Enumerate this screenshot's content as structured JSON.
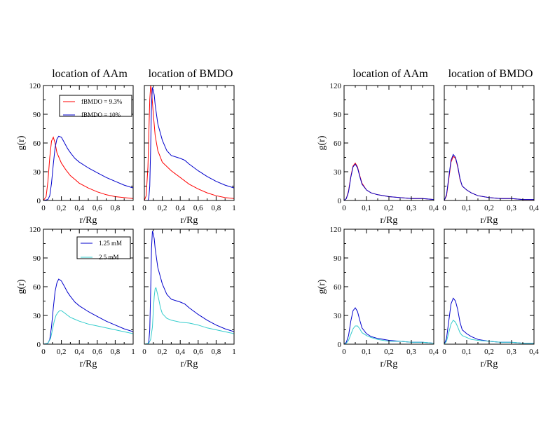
{
  "colors": {
    "red": "#ff0000",
    "blue": "#0000cc",
    "cyan": "#33cccc",
    "axes": "#000000"
  },
  "legends": {
    "fbmdo": {
      "entries": [
        {
          "label": "fBMDO = 9.3%",
          "color": "#ff0000"
        },
        {
          "label": "fBMDO = 10%",
          "color": "#0000cc"
        }
      ]
    },
    "conc": {
      "entries": [
        {
          "label": "1.25 mM",
          "color": "#0000cc"
        },
        {
          "label": "2.5 mM",
          "color": "#33cccc"
        }
      ]
    }
  },
  "chart_data": [
    {
      "type": "line",
      "title": "location of AAm",
      "xlabel": "r/Rg",
      "ylabel": "g(r)",
      "xlim": [
        0,
        1
      ],
      "ylim": [
        0,
        120
      ],
      "xticks": [
        "0",
        "0,2",
        "0,4",
        "0,6",
        "0,8",
        "1"
      ],
      "yticks": [
        "0",
        "30",
        "60",
        "90",
        "120"
      ],
      "legend": "fbmdo",
      "series": [
        {
          "name": "fBMDO = 9.3%",
          "color": "#ff0000",
          "x": [
            0,
            0.03,
            0.05,
            0.07,
            0.09,
            0.11,
            0.13,
            0.15,
            0.2,
            0.25,
            0.3,
            0.35,
            0.4,
            0.5,
            0.6,
            0.7,
            0.8,
            0.9,
            1.0
          ],
          "y": [
            0,
            4,
            20,
            45,
            62,
            66,
            60,
            50,
            39,
            32,
            26,
            22,
            18,
            13,
            9,
            6,
            4,
            3,
            2
          ]
        },
        {
          "name": "fBMDO = 10%",
          "color": "#0000cc",
          "x": [
            0,
            0.05,
            0.07,
            0.09,
            0.11,
            0.13,
            0.15,
            0.17,
            0.2,
            0.23,
            0.27,
            0.3,
            0.35,
            0.4,
            0.5,
            0.6,
            0.7,
            0.8,
            0.9,
            1.0
          ],
          "y": [
            0,
            1,
            5,
            18,
            38,
            55,
            64,
            67,
            66,
            61,
            54,
            50,
            44,
            40,
            34,
            29,
            24,
            20,
            16,
            13
          ]
        }
      ]
    },
    {
      "type": "line",
      "title": "location of BMDO",
      "xlabel": "r/Rg",
      "ylabel": "",
      "xlim": [
        0,
        1
      ],
      "ylim": [
        0,
        120
      ],
      "xticks": [
        "0",
        "0,2",
        "0,4",
        "0,6",
        "0,8",
        "1"
      ],
      "yticks": [],
      "series": [
        {
          "color": "#ff0000",
          "x": [
            0,
            0.02,
            0.04,
            0.05,
            0.06,
            0.07,
            0.08,
            0.1,
            0.12,
            0.15,
            0.2,
            0.3,
            0.4,
            0.5,
            0.6,
            0.7,
            0.8,
            0.9,
            1.0
          ],
          "y": [
            0,
            5,
            35,
            70,
            105,
            120,
            115,
            90,
            68,
            52,
            40,
            31,
            24,
            17,
            12,
            8,
            5,
            3,
            2
          ]
        },
        {
          "color": "#0000cc",
          "x": [
            0,
            0.04,
            0.05,
            0.06,
            0.07,
            0.08,
            0.09,
            0.1,
            0.11,
            0.12,
            0.15,
            0.2,
            0.25,
            0.3,
            0.4,
            0.45,
            0.5,
            0.6,
            0.7,
            0.8,
            0.9,
            1.0
          ],
          "y": [
            0,
            0,
            3,
            15,
            55,
            100,
            118,
            115,
            110,
            100,
            80,
            63,
            52,
            47,
            44,
            42,
            38,
            31,
            25,
            20,
            16,
            13
          ]
        }
      ]
    },
    {
      "type": "line",
      "title": "location of AAm",
      "xlabel": "r/Rg",
      "ylabel": "g(r)",
      "xlim": [
        0,
        0.4
      ],
      "ylim": [
        0,
        120
      ],
      "xticks": [
        "0",
        "0,1",
        "0,2",
        "0,3",
        "0,4"
      ],
      "yticks": [
        "0",
        "30",
        "60",
        "90",
        "120"
      ],
      "series": [
        {
          "color": "#ff0000",
          "x": [
            0,
            0.01,
            0.02,
            0.03,
            0.04,
            0.05,
            0.06,
            0.07,
            0.08,
            0.1,
            0.12,
            0.15,
            0.2,
            0.25,
            0.3,
            0.35,
            0.4
          ],
          "y": [
            0,
            2,
            10,
            25,
            36,
            39,
            35,
            26,
            18,
            11,
            8,
            6,
            4,
            3,
            2,
            2,
            1
          ]
        },
        {
          "color": "#0000cc",
          "x": [
            0,
            0.01,
            0.02,
            0.03,
            0.04,
            0.05,
            0.06,
            0.07,
            0.08,
            0.1,
            0.12,
            0.15,
            0.2,
            0.25,
            0.3,
            0.35,
            0.4
          ],
          "y": [
            0,
            2,
            9,
            24,
            35,
            38,
            34,
            25,
            17,
            11,
            8,
            6,
            4,
            3,
            2,
            2,
            1
          ]
        }
      ]
    },
    {
      "type": "line",
      "title": "location of BMDO",
      "xlabel": "r/Rg",
      "ylabel": "",
      "xlim": [
        0,
        0.4
      ],
      "ylim": [
        0,
        120
      ],
      "xticks": [
        "0",
        "0,1",
        "0,2",
        "0,3",
        "0,4"
      ],
      "yticks": [],
      "series": [
        {
          "color": "#ff0000",
          "x": [
            0,
            0.01,
            0.02,
            0.03,
            0.04,
            0.05,
            0.06,
            0.07,
            0.08,
            0.1,
            0.12,
            0.15,
            0.2,
            0.25,
            0.3,
            0.35,
            0.4
          ],
          "y": [
            0,
            5,
            22,
            40,
            46,
            44,
            35,
            22,
            15,
            11,
            8,
            5,
            3,
            2,
            2,
            1,
            1
          ]
        },
        {
          "color": "#0000cc",
          "x": [
            0,
            0.01,
            0.02,
            0.03,
            0.04,
            0.05,
            0.06,
            0.07,
            0.08,
            0.1,
            0.12,
            0.15,
            0.2,
            0.25,
            0.3,
            0.35,
            0.4
          ],
          "y": [
            0,
            6,
            24,
            42,
            48,
            45,
            36,
            23,
            15,
            11,
            8,
            5,
            3,
            2,
            2,
            1,
            1
          ]
        }
      ]
    },
    {
      "type": "line",
      "title": "",
      "xlabel": "r/Rg",
      "ylabel": "g(r)",
      "xlim": [
        0,
        1
      ],
      "ylim": [
        0,
        120
      ],
      "xticks": [
        "0",
        "0,2",
        "0,4",
        "0,6",
        "0,8",
        "1"
      ],
      "yticks": [
        "0",
        "30",
        "60",
        "90",
        "120"
      ],
      "legend": "conc",
      "series": [
        {
          "name": "1.25 mM",
          "color": "#0000cc",
          "x": [
            0,
            0.05,
            0.07,
            0.09,
            0.11,
            0.13,
            0.15,
            0.17,
            0.2,
            0.23,
            0.27,
            0.3,
            0.35,
            0.4,
            0.5,
            0.6,
            0.7,
            0.8,
            0.9,
            1.0
          ],
          "y": [
            0,
            1,
            5,
            18,
            38,
            55,
            64,
            68,
            66,
            61,
            54,
            50,
            44,
            40,
            34,
            29,
            24,
            20,
            16,
            13
          ]
        },
        {
          "name": "2.5 mM",
          "color": "#33cccc",
          "x": [
            0,
            0.05,
            0.08,
            0.1,
            0.12,
            0.14,
            0.16,
            0.18,
            0.2,
            0.23,
            0.27,
            0.3,
            0.35,
            0.4,
            0.5,
            0.6,
            0.7,
            0.8,
            0.9,
            1.0
          ],
          "y": [
            0,
            1,
            6,
            15,
            24,
            30,
            33,
            35,
            35,
            33,
            30,
            28,
            26,
            24,
            21,
            19,
            17,
            15,
            13,
            11
          ]
        }
      ]
    },
    {
      "type": "line",
      "title": "",
      "xlabel": "r/Rg",
      "ylabel": "",
      "xlim": [
        0,
        1
      ],
      "ylim": [
        0,
        120
      ],
      "xticks": [
        "0",
        "0,2",
        "0,4",
        "0,6",
        "0,8",
        "1"
      ],
      "yticks": [],
      "series": [
        {
          "color": "#0000cc",
          "x": [
            0,
            0.04,
            0.05,
            0.06,
            0.07,
            0.08,
            0.09,
            0.1,
            0.11,
            0.12,
            0.15,
            0.2,
            0.25,
            0.3,
            0.4,
            0.45,
            0.5,
            0.6,
            0.7,
            0.8,
            0.9,
            1.0
          ],
          "y": [
            0,
            0,
            3,
            15,
            55,
            100,
            118,
            115,
            110,
            100,
            80,
            63,
            52,
            47,
            44,
            42,
            38,
            31,
            25,
            20,
            16,
            13
          ]
        },
        {
          "color": "#33cccc",
          "x": [
            0,
            0.05,
            0.07,
            0.09,
            0.1,
            0.11,
            0.12,
            0.13,
            0.14,
            0.16,
            0.18,
            0.2,
            0.25,
            0.3,
            0.4,
            0.5,
            0.6,
            0.7,
            0.8,
            0.9,
            1.0
          ],
          "y": [
            0,
            1,
            5,
            18,
            35,
            50,
            58,
            59,
            55,
            47,
            38,
            32,
            27,
            25,
            23,
            22,
            20,
            17,
            15,
            13,
            11
          ]
        }
      ]
    },
    {
      "type": "line",
      "title": "",
      "xlabel": "r/Rg",
      "ylabel": "g(r)",
      "xlim": [
        0,
        0.4
      ],
      "ylim": [
        0,
        120
      ],
      "xticks": [
        "0",
        "0,1",
        "0,2",
        "0,3",
        "0,4"
      ],
      "yticks": [
        "0",
        "30",
        "60",
        "90",
        "120"
      ],
      "series": [
        {
          "color": "#0000cc",
          "x": [
            0,
            0.01,
            0.02,
            0.03,
            0.04,
            0.05,
            0.06,
            0.07,
            0.08,
            0.1,
            0.12,
            0.15,
            0.2,
            0.25,
            0.3,
            0.35,
            0.4
          ],
          "y": [
            0,
            2,
            9,
            24,
            35,
            38,
            34,
            25,
            17,
            11,
            8,
            6,
            4,
            3,
            2,
            2,
            1
          ]
        },
        {
          "color": "#33cccc",
          "x": [
            0,
            0.01,
            0.02,
            0.03,
            0.04,
            0.05,
            0.06,
            0.07,
            0.08,
            0.1,
            0.12,
            0.15,
            0.2,
            0.25,
            0.3,
            0.35,
            0.4
          ],
          "y": [
            0,
            1,
            4,
            10,
            16,
            19,
            19,
            16,
            12,
            9,
            7,
            5,
            3,
            3,
            2,
            2,
            1
          ]
        }
      ]
    },
    {
      "type": "line",
      "title": "",
      "xlabel": "r/Rg",
      "ylabel": "",
      "xlim": [
        0,
        0.4
      ],
      "ylim": [
        0,
        120
      ],
      "xticks": [
        "0",
        "0,1",
        "0,2",
        "0,3",
        "0,4"
      ],
      "yticks": [],
      "series": [
        {
          "color": "#0000cc",
          "x": [
            0,
            0.01,
            0.02,
            0.03,
            0.04,
            0.05,
            0.06,
            0.07,
            0.08,
            0.1,
            0.12,
            0.15,
            0.2,
            0.25,
            0.3,
            0.35,
            0.4
          ],
          "y": [
            0,
            6,
            24,
            42,
            48,
            45,
            36,
            23,
            15,
            11,
            8,
            5,
            3,
            2,
            2,
            1,
            1
          ]
        },
        {
          "color": "#33cccc",
          "x": [
            0,
            0.01,
            0.02,
            0.03,
            0.04,
            0.05,
            0.06,
            0.07,
            0.08,
            0.1,
            0.12,
            0.15,
            0.2,
            0.25,
            0.3,
            0.35,
            0.4
          ],
          "y": [
            0,
            3,
            12,
            21,
            25,
            23,
            18,
            12,
            9,
            7,
            5,
            4,
            3,
            2,
            2,
            1,
            1
          ]
        }
      ]
    }
  ]
}
